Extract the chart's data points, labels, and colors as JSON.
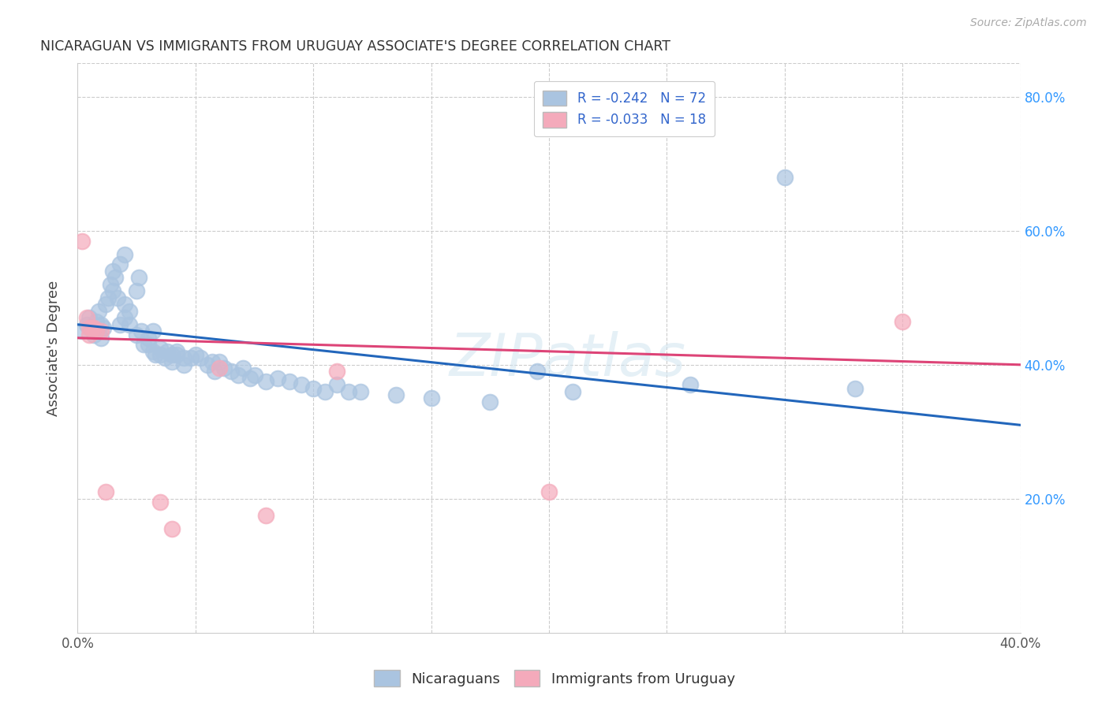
{
  "title": "NICARAGUAN VS IMMIGRANTS FROM URUGUAY ASSOCIATE'S DEGREE CORRELATION CHART",
  "source": "Source: ZipAtlas.com",
  "ylabel": "Associate's Degree",
  "xlim": [
    0.0,
    0.4
  ],
  "ylim": [
    0.0,
    0.85
  ],
  "xticks": [
    0.0,
    0.05,
    0.1,
    0.15,
    0.2,
    0.25,
    0.3,
    0.35,
    0.4
  ],
  "xtick_labels": [
    "0.0%",
    "",
    "",
    "",
    "",
    "",
    "",
    "",
    "40.0%"
  ],
  "ytick_positions": [
    0.2,
    0.4,
    0.6,
    0.8
  ],
  "ytick_labels": [
    "20.0%",
    "40.0%",
    "60.0%",
    "80.0%"
  ],
  "legend_blue_label": "R = -0.242   N = 72",
  "legend_pink_label": "R = -0.033   N = 18",
  "blue_color": "#aac4e0",
  "pink_color": "#f4aabb",
  "blue_line_color": "#2266bb",
  "pink_line_color": "#dd4477",
  "watermark": "ZIPatlas",
  "blue_scatter": [
    [
      0.002,
      0.45
    ],
    [
      0.004,
      0.46
    ],
    [
      0.005,
      0.47
    ],
    [
      0.006,
      0.455
    ],
    [
      0.007,
      0.445
    ],
    [
      0.008,
      0.465
    ],
    [
      0.009,
      0.48
    ],
    [
      0.01,
      0.46
    ],
    [
      0.01,
      0.44
    ],
    [
      0.011,
      0.455
    ],
    [
      0.012,
      0.49
    ],
    [
      0.013,
      0.5
    ],
    [
      0.014,
      0.52
    ],
    [
      0.015,
      0.54
    ],
    [
      0.015,
      0.51
    ],
    [
      0.016,
      0.53
    ],
    [
      0.017,
      0.5
    ],
    [
      0.018,
      0.55
    ],
    [
      0.02,
      0.565
    ],
    [
      0.018,
      0.46
    ],
    [
      0.02,
      0.49
    ],
    [
      0.02,
      0.47
    ],
    [
      0.022,
      0.48
    ],
    [
      0.022,
      0.46
    ],
    [
      0.025,
      0.51
    ],
    [
      0.026,
      0.53
    ],
    [
      0.025,
      0.445
    ],
    [
      0.027,
      0.45
    ],
    [
      0.028,
      0.43
    ],
    [
      0.03,
      0.44
    ],
    [
      0.03,
      0.43
    ],
    [
      0.032,
      0.45
    ],
    [
      0.032,
      0.42
    ],
    [
      0.033,
      0.415
    ],
    [
      0.035,
      0.425
    ],
    [
      0.035,
      0.415
    ],
    [
      0.037,
      0.41
    ],
    [
      0.038,
      0.42
    ],
    [
      0.04,
      0.415
    ],
    [
      0.04,
      0.405
    ],
    [
      0.042,
      0.42
    ],
    [
      0.042,
      0.415
    ],
    [
      0.045,
      0.41
    ],
    [
      0.045,
      0.4
    ],
    [
      0.048,
      0.41
    ],
    [
      0.05,
      0.415
    ],
    [
      0.052,
      0.41
    ],
    [
      0.055,
      0.4
    ],
    [
      0.057,
      0.405
    ],
    [
      0.058,
      0.39
    ],
    [
      0.06,
      0.405
    ],
    [
      0.062,
      0.395
    ],
    [
      0.065,
      0.39
    ],
    [
      0.068,
      0.385
    ],
    [
      0.07,
      0.395
    ],
    [
      0.073,
      0.38
    ],
    [
      0.075,
      0.385
    ],
    [
      0.08,
      0.375
    ],
    [
      0.085,
      0.38
    ],
    [
      0.09,
      0.375
    ],
    [
      0.095,
      0.37
    ],
    [
      0.1,
      0.365
    ],
    [
      0.105,
      0.36
    ],
    [
      0.11,
      0.37
    ],
    [
      0.115,
      0.36
    ],
    [
      0.12,
      0.36
    ],
    [
      0.135,
      0.355
    ],
    [
      0.15,
      0.35
    ],
    [
      0.175,
      0.345
    ],
    [
      0.195,
      0.39
    ],
    [
      0.21,
      0.36
    ],
    [
      0.26,
      0.37
    ],
    [
      0.3,
      0.68
    ],
    [
      0.33,
      0.365
    ]
  ],
  "pink_scatter": [
    [
      0.002,
      0.585
    ],
    [
      0.004,
      0.47
    ],
    [
      0.005,
      0.455
    ],
    [
      0.005,
      0.445
    ],
    [
      0.006,
      0.455
    ],
    [
      0.007,
      0.455
    ],
    [
      0.008,
      0.45
    ],
    [
      0.01,
      0.45
    ],
    [
      0.012,
      0.21
    ],
    [
      0.035,
      0.195
    ],
    [
      0.04,
      0.155
    ],
    [
      0.06,
      0.395
    ],
    [
      0.08,
      0.175
    ],
    [
      0.11,
      0.39
    ],
    [
      0.2,
      0.21
    ],
    [
      0.35,
      0.465
    ]
  ],
  "blue_trendline": [
    [
      0.0,
      0.46
    ],
    [
      0.4,
      0.31
    ]
  ],
  "pink_trendline": [
    [
      0.0,
      0.44
    ],
    [
      0.4,
      0.4
    ]
  ]
}
